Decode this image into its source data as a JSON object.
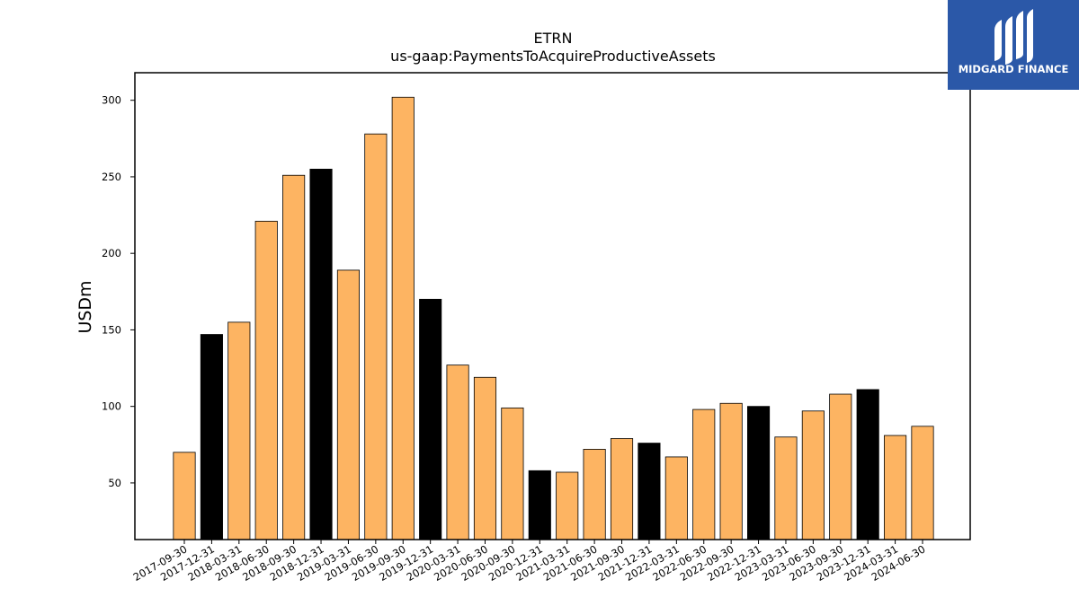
{
  "logo": {
    "text": "MIDGARD FINANCE",
    "background": "#2b58a8",
    "foreground": "#ffffff"
  },
  "chart_data": {
    "type": "bar",
    "title": "ETRN",
    "subtitle": "us-gaap:PaymentsToAcquireProductiveAssets",
    "ylabel": "USDm",
    "xlabel": "",
    "ylim": [
      13,
      318
    ],
    "yticks": [
      50,
      100,
      150,
      200,
      250,
      300
    ],
    "grid": false,
    "colors": {
      "quarter": "#fdb462",
      "year_end": "#000000",
      "edge": "#000000"
    },
    "categories": [
      "2017-09-30",
      "2017-12-31",
      "2018-03-31",
      "2018-06-30",
      "2018-09-30",
      "2018-12-31",
      "2019-03-31",
      "2019-06-30",
      "2019-09-30",
      "2019-12-31",
      "2020-03-31",
      "2020-06-30",
      "2020-09-30",
      "2020-12-31",
      "2021-03-31",
      "2021-06-30",
      "2021-09-30",
      "2021-12-31",
      "2022-03-31",
      "2022-06-30",
      "2022-09-30",
      "2022-12-31",
      "2023-03-31",
      "2023-06-30",
      "2023-09-30",
      "2023-12-31",
      "2024-03-31",
      "2024-06-30"
    ],
    "values": [
      70,
      147,
      155,
      221,
      251,
      255,
      189,
      278,
      302,
      170,
      127,
      119,
      99,
      58,
      57,
      72,
      79,
      76,
      67,
      98,
      102,
      100,
      80,
      97,
      108,
      111,
      81,
      87
    ],
    "year_end": [
      false,
      true,
      false,
      false,
      false,
      true,
      false,
      false,
      false,
      true,
      false,
      false,
      false,
      true,
      false,
      false,
      false,
      true,
      false,
      false,
      false,
      true,
      false,
      false,
      false,
      true,
      false,
      false
    ]
  }
}
